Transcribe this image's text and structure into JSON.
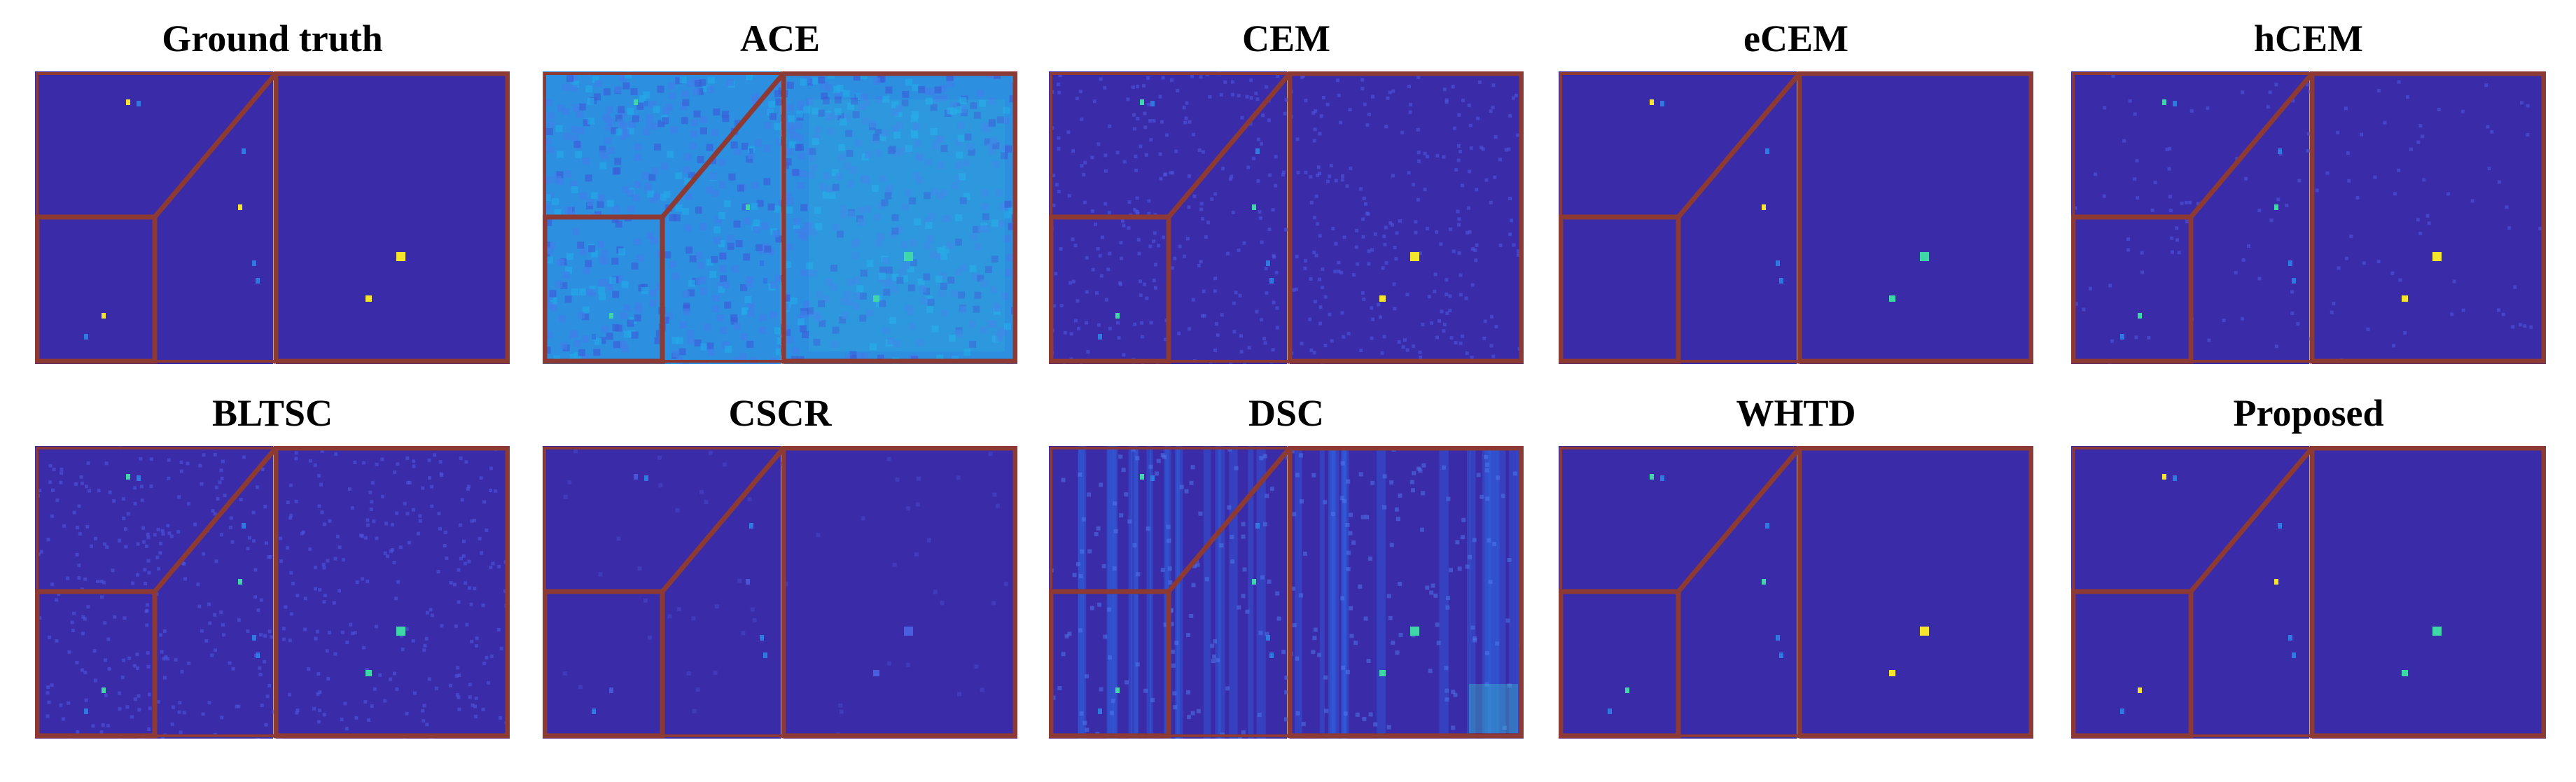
{
  "figure": {
    "colors": {
      "background": "#3a2ba8",
      "background_alt": "#3a35c2",
      "zoom_frame": "#8c3a33",
      "target_hot": "#f5e52c",
      "target_warm": "#3fd6a8",
      "target_cool": "#2f7ae0",
      "ace_noise": "#2c8fe0",
      "dsc_streak": "#2f6ae8"
    },
    "panels": [
      {
        "title": "Ground truth",
        "style": "clean",
        "intensity": 1.0
      },
      {
        "title": "ACE",
        "style": "ace",
        "intensity": 0.9
      },
      {
        "title": "CEM",
        "style": "noisy",
        "intensity": 0.7
      },
      {
        "title": "eCEM",
        "style": "clean",
        "intensity": 1.0
      },
      {
        "title": "hCEM",
        "style": "speckle",
        "intensity": 0.8
      },
      {
        "title": "BLTSC",
        "style": "noisy",
        "intensity": 0.6
      },
      {
        "title": "CSCR",
        "style": "faint",
        "intensity": 0.3
      },
      {
        "title": "DSC",
        "style": "dsc",
        "intensity": 0.6
      },
      {
        "title": "WHTD",
        "style": "clean",
        "intensity": 0.85
      },
      {
        "title": "Proposed",
        "style": "clean",
        "intensity": 0.9
      }
    ]
  }
}
